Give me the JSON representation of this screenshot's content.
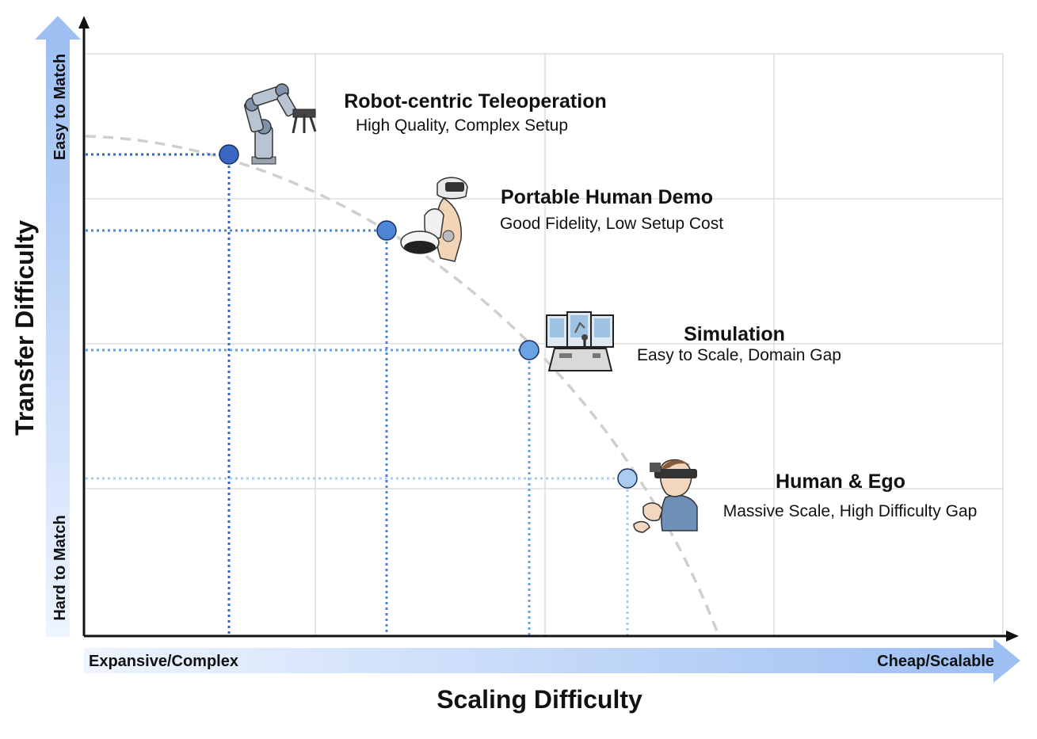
{
  "axes": {
    "x_title": "Scaling Difficulty",
    "y_title": "Transfer Difficulty",
    "x_left_label": "Expansive/Complex",
    "x_right_label": "Cheap/Scalable",
    "y_top_label": "Easy to Match",
    "y_bottom_label": "Hard to Match"
  },
  "points": [
    {
      "title": "Robot-centric Teleoperation",
      "subtitle": "High Quality, Complex Setup",
      "color": "#3a67c4",
      "icon": "robot-arm-icon"
    },
    {
      "title": "Portable Human Demo",
      "subtitle": "Good Fidelity, Low Setup Cost",
      "color": "#4d86d6",
      "icon": "handheld-gripper-icon"
    },
    {
      "title": "Simulation",
      "subtitle": "Easy to Scale, Domain Gap",
      "color": "#6aa2e2",
      "icon": "simulator-console-icon"
    },
    {
      "title": "Human & Ego",
      "subtitle": "Massive Scale, High Difficulty Gap",
      "color": "#a8cdf0",
      "icon": "human-ego-camera-icon"
    }
  ],
  "colors": {
    "frontier": "#cfcfcf",
    "grid": "#dddddd",
    "axis": "#111111",
    "arrow_light": "#e6f0ff",
    "arrow_dark": "#9dbff2"
  }
}
